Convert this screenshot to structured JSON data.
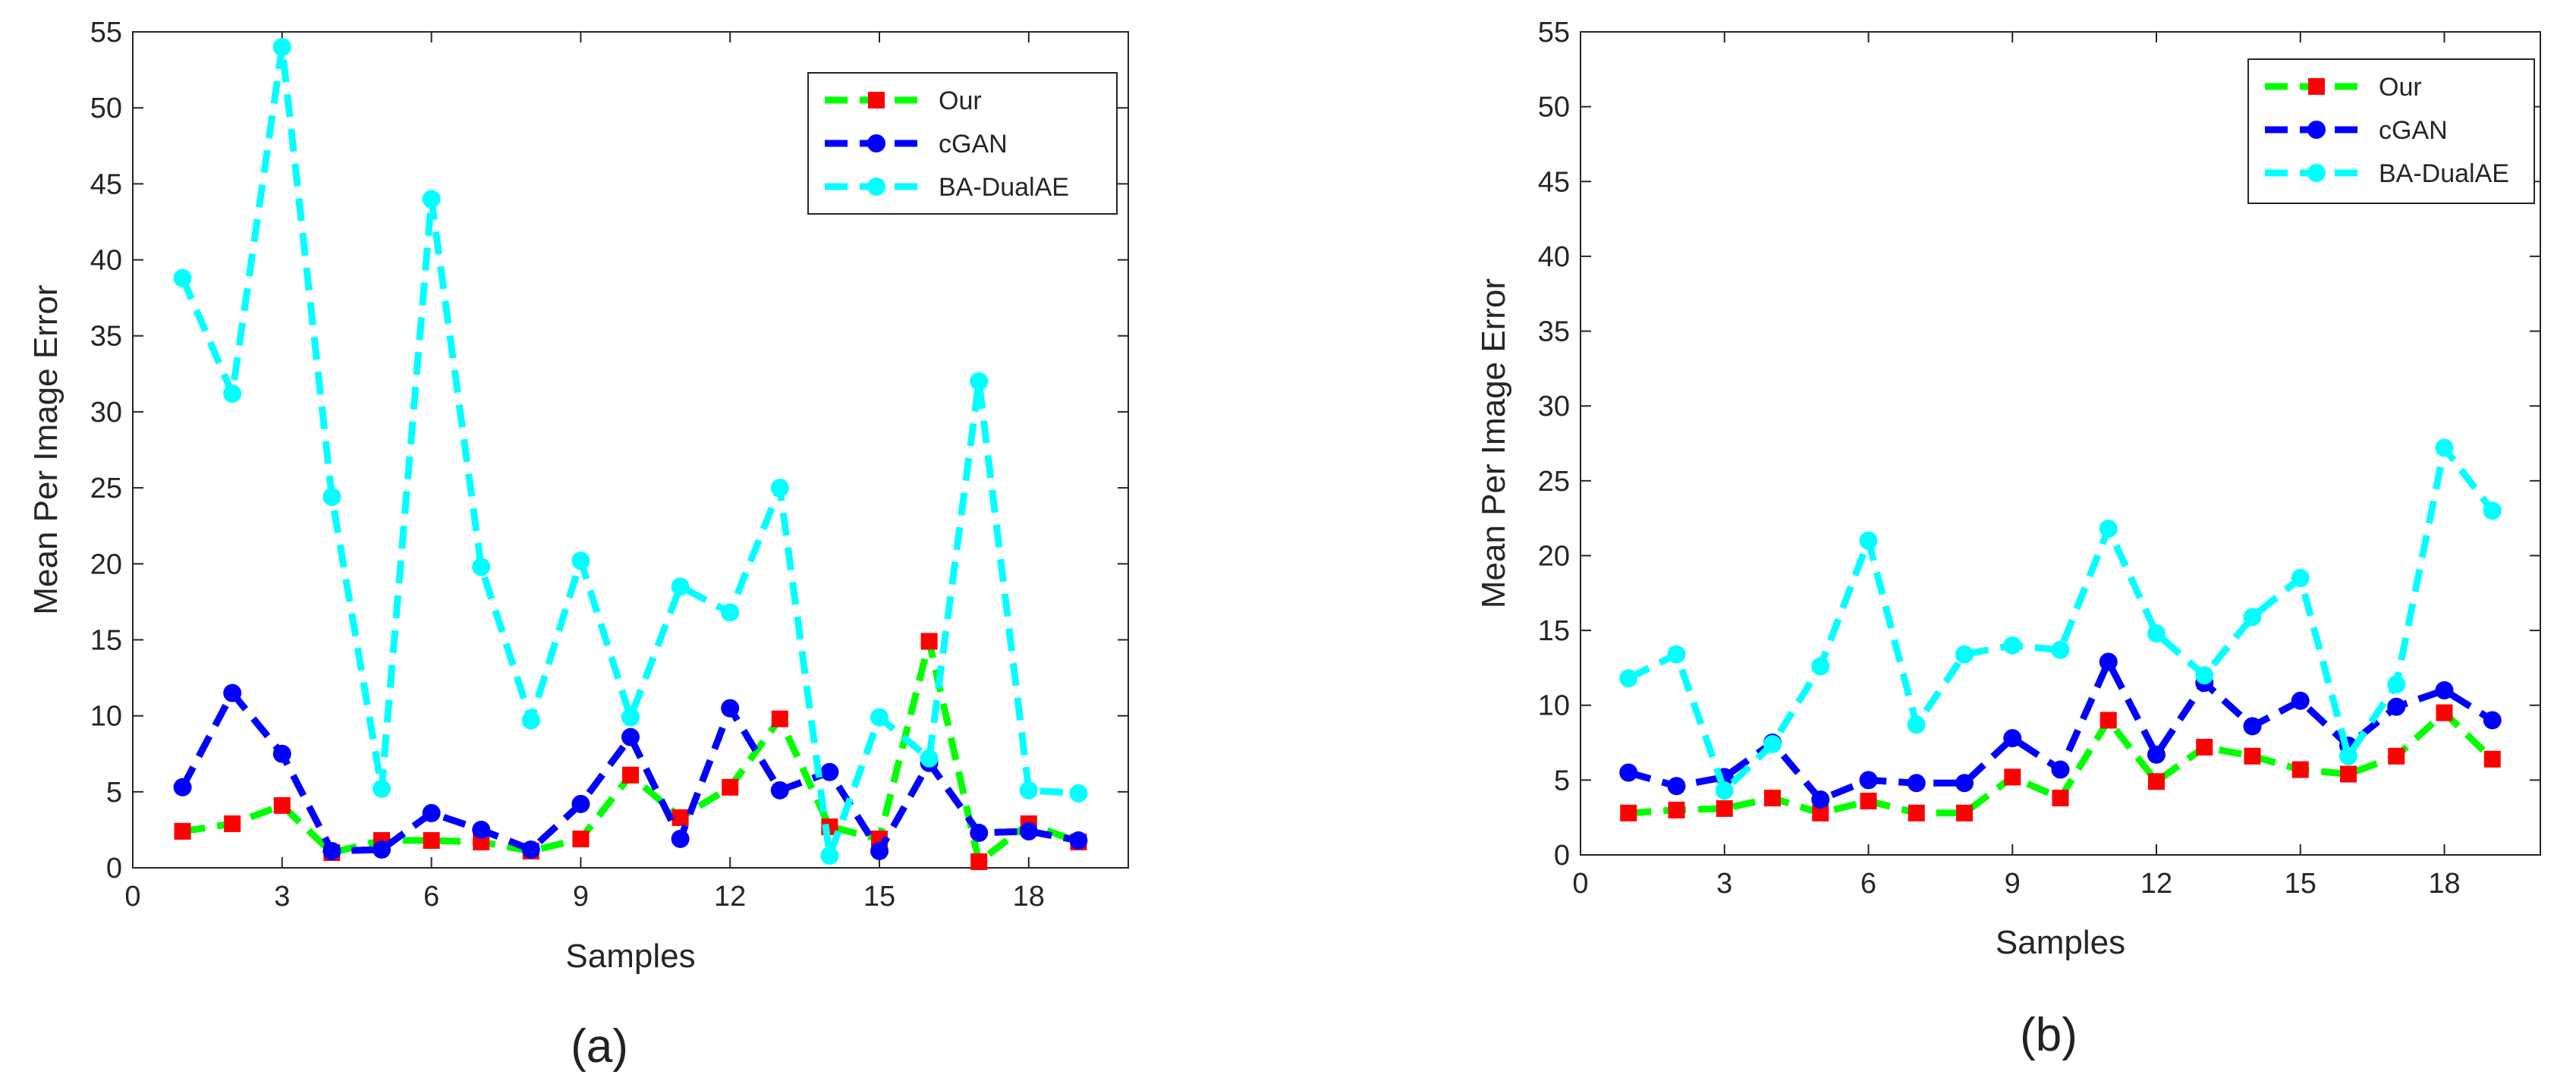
{
  "chart_data": [
    {
      "type": "line",
      "caption": "(a)",
      "xlabel": "Samples",
      "ylabel": "Mean Per Image Error",
      "xlim": [
        0,
        20
      ],
      "ylim": [
        0,
        55
      ],
      "xticks": [
        0,
        3,
        6,
        9,
        12,
        15,
        18
      ],
      "yticks": [
        0,
        5,
        10,
        15,
        20,
        25,
        30,
        35,
        40,
        45,
        50,
        55
      ],
      "x": [
        1,
        2,
        3,
        4,
        5,
        6,
        7,
        8,
        9,
        10,
        11,
        12,
        13,
        14,
        15,
        16,
        17,
        18,
        19
      ],
      "legend_position": "top-right",
      "series": [
        {
          "name": "Our",
          "color": "#00ff00",
          "marker_color": "#ff0000",
          "marker": "square",
          "values": [
            2.4,
            2.9,
            4.1,
            1.0,
            1.8,
            1.8,
            1.7,
            1.1,
            1.9,
            6.1,
            3.3,
            5.3,
            9.8,
            2.7,
            1.9,
            14.9,
            0.4,
            2.9,
            1.7
          ]
        },
        {
          "name": "cGAN",
          "color": "#0000ff",
          "marker_color": "#0000ff",
          "marker": "circle",
          "values": [
            5.3,
            11.5,
            7.5,
            1.1,
            1.2,
            3.6,
            2.5,
            1.2,
            4.2,
            8.6,
            1.9,
            10.5,
            5.1,
            6.3,
            1.1,
            6.9,
            2.3,
            2.4,
            1.8
          ]
        },
        {
          "name": "BA-DualAE",
          "color": "#00ffff",
          "marker_color": "#00ffff",
          "marker": "circle",
          "values": [
            38.8,
            31.2,
            54.0,
            24.4,
            5.2,
            44.0,
            19.8,
            9.7,
            20.2,
            9.9,
            18.5,
            16.8,
            25.0,
            0.8,
            9.9,
            7.2,
            32.0,
            5.1,
            4.9
          ]
        }
      ]
    },
    {
      "type": "line",
      "caption": "(b)",
      "xlabel": "Samples",
      "ylabel": "Mean Per Image Error",
      "xlim": [
        0,
        20
      ],
      "ylim": [
        0,
        55
      ],
      "xticks": [
        0,
        3,
        6,
        9,
        12,
        15,
        18
      ],
      "yticks": [
        0,
        5,
        10,
        15,
        20,
        25,
        30,
        35,
        40,
        45,
        50,
        55
      ],
      "x": [
        1,
        2,
        3,
        4,
        5,
        6,
        7,
        8,
        9,
        10,
        11,
        12,
        13,
        14,
        15,
        16,
        17,
        18,
        19
      ],
      "legend_position": "top-right",
      "series": [
        {
          "name": "Our",
          "color": "#00ff00",
          "marker_color": "#ff0000",
          "marker": "square",
          "values": [
            2.8,
            3.0,
            3.1,
            3.8,
            2.8,
            3.6,
            2.8,
            2.8,
            5.2,
            3.8,
            9.0,
            4.9,
            7.2,
            6.6,
            5.7,
            5.4,
            6.6,
            9.5,
            6.4
          ]
        },
        {
          "name": "cGAN",
          "color": "#0000ff",
          "marker_color": "#0000ff",
          "marker": "circle",
          "values": [
            5.5,
            4.6,
            5.2,
            7.5,
            3.7,
            5.0,
            4.8,
            4.8,
            7.8,
            5.7,
            12.9,
            6.7,
            11.5,
            8.6,
            10.3,
            7.3,
            9.9,
            11.0,
            9.0
          ]
        },
        {
          "name": "BA-DualAE",
          "color": "#00ffff",
          "marker_color": "#00ffff",
          "marker": "circle",
          "values": [
            11.8,
            13.4,
            4.3,
            7.4,
            12.6,
            21.0,
            8.7,
            13.4,
            14.0,
            13.7,
            21.8,
            14.8,
            12.0,
            15.9,
            18.5,
            6.6,
            11.4,
            27.2,
            23.0
          ]
        }
      ]
    }
  ]
}
